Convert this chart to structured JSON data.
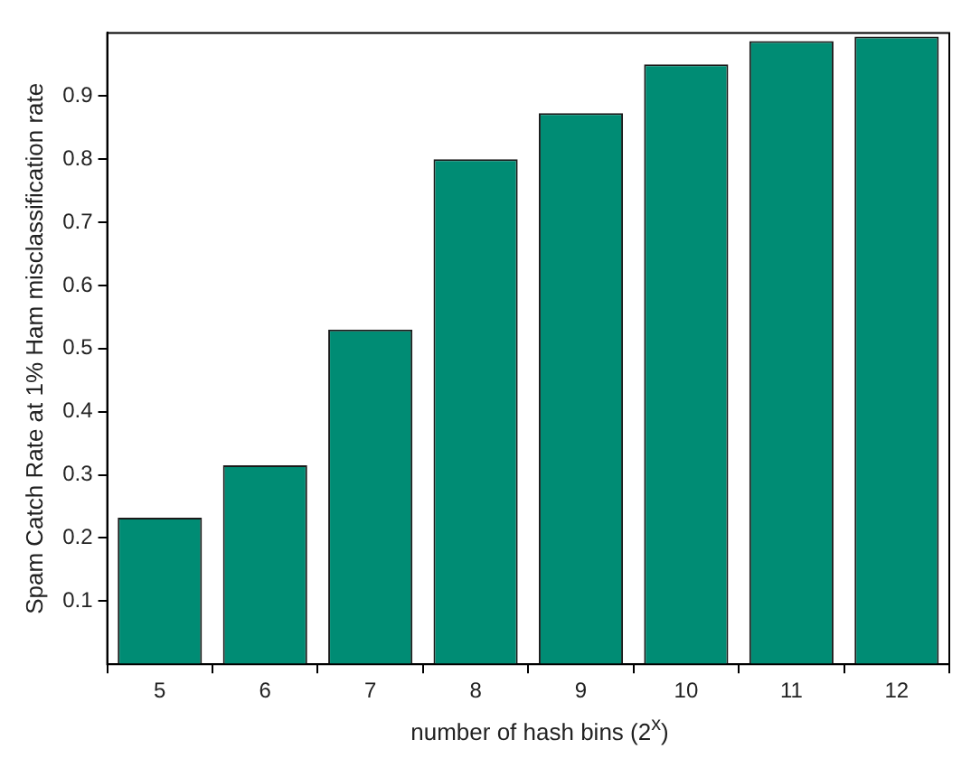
{
  "chart_data": {
    "type": "bar",
    "xlabel": "number of hash bins (2$^{x}$)",
    "ylabel": "Spam Catch Rate at 1% Ham misclassification rate",
    "categories": [
      "5",
      "6",
      "7",
      "8",
      "9",
      "10",
      "11",
      "12"
    ],
    "values": [
      0.232,
      0.315,
      0.53,
      0.8,
      0.873,
      0.95,
      0.987,
      0.994
    ],
    "color": "#008c74",
    "ylim": [
      0,
      1
    ],
    "yticks": [
      0.1,
      0.2,
      0.3,
      0.4,
      0.5,
      0.6,
      0.7,
      0.8,
      0.9
    ]
  }
}
